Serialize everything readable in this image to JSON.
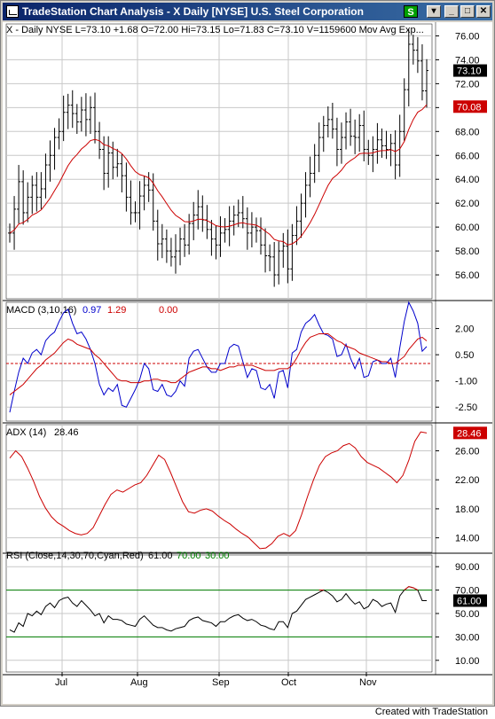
{
  "window": {
    "title": "TradeStation Chart Analysis - X  Daily  [NYSE] U.S. Steel Corporation",
    "s_badge": "S",
    "dropdown_glyph": "▾",
    "minimize_glyph": "_",
    "maximize_glyph": "□",
    "close_glyph": "✕"
  },
  "footer": {
    "credit": "Created with TradeStation"
  },
  "chart_data": [
    {
      "type": "line",
      "panel": "price",
      "style": "ohlc-bars",
      "header": "X - Daily    NYSE  L=73.10  +1.68  O=72.00  Hi=73.15  Lo=71.83  C=73.10  V=1159600  Mov Avg Exp...",
      "y_ticks": [
        "76.00",
        "74.00",
        "72.00",
        "70.00",
        "68.00",
        "66.00",
        "64.00",
        "62.00",
        "60.00",
        "58.00",
        "56.00"
      ],
      "ylim": [
        54,
        77
      ],
      "markers": [
        {
          "label": "73.10",
          "value": 73.1,
          "color": "#000000"
        },
        {
          "label": "70.08",
          "value": 70.08,
          "color": "#cc0000"
        }
      ],
      "series": [
        {
          "color": "#000000",
          "values": [
            59.5,
            61.5,
            63.8,
            61.2,
            62.5,
            63.5,
            62.5,
            63.2,
            65.2,
            66.0,
            67.5,
            68.0,
            69.6,
            70.2,
            69.5,
            68.8,
            69.8,
            69.0,
            70.0,
            68.0,
            66.5,
            64.5,
            66.2,
            65.0,
            65.3,
            64.3,
            62.5,
            61.2,
            61.2,
            62.6,
            63.5,
            63.1,
            60.5,
            58.6,
            59.0,
            58.0,
            57.5,
            58.0,
            59.0,
            58.5,
            60.3,
            61.0,
            61.7,
            60.6,
            59.8,
            59.0,
            58.5,
            59.5,
            59.8,
            60.5,
            61.0,
            61.2,
            60.7,
            59.5,
            60.0,
            59.7,
            58.5,
            57.6,
            57.5,
            56.0,
            58.0,
            58.4,
            56.5,
            59.3,
            60.5,
            62.0,
            63.5,
            64.5,
            66.0,
            67.5,
            68.5,
            69.0,
            68.2,
            66.5,
            67.5,
            68.8,
            67.6,
            67.5,
            68.5,
            66.5,
            66.0,
            66.5,
            67.3,
            66.8,
            66.5,
            67.0,
            65.2,
            68.0,
            71.5,
            75.3,
            74.8,
            73.9,
            71.4,
            73.1
          ]
        }
      ]
    },
    {
      "type": "line",
      "panel": "indicator",
      "header": "MACD  (3,10,16)",
      "readouts": [
        {
          "text": "0.97",
          "color": "#0000cc"
        },
        {
          "text": "1.29",
          "color": "#cc0000"
        },
        {
          "text": "0.00",
          "color": "#cc0000"
        }
      ],
      "y_ticks": [
        "2.00",
        "0.50",
        "-1.00",
        "-2.50"
      ],
      "ylim": [
        -3.3,
        3.5
      ],
      "series": [
        {
          "color": "#0000cc",
          "values": [
            -2.8,
            -1.6,
            -0.5,
            0.3,
            0.0,
            0.6,
            0.8,
            0.5,
            1.3,
            1.6,
            1.8,
            2.4,
            2.9,
            3.1,
            2.3,
            1.7,
            1.8,
            1.4,
            0.8,
            0.0,
            -1.2,
            -1.8,
            -1.4,
            -1.6,
            -1.2,
            -2.4,
            -2.5,
            -2.0,
            -1.5,
            -0.9,
            0.0,
            -0.3,
            -1.5,
            -1.6,
            -1.2,
            -1.8,
            -1.9,
            -1.6,
            -1.0,
            -1.3,
            0.3,
            0.7,
            0.8,
            0.3,
            -0.2,
            -0.5,
            -0.5,
            0.0,
            0.0,
            0.9,
            1.1,
            1.0,
            0.1,
            -0.8,
            -0.3,
            -0.4,
            -1.4,
            -1.5,
            -1.2,
            -2.0,
            -0.5,
            -0.4,
            -1.4,
            0.6,
            0.8,
            1.8,
            2.3,
            2.5,
            2.8,
            2.2,
            1.7,
            1.6,
            1.4,
            0.4,
            0.5,
            1.1,
            0.3,
            -0.3,
            0.3,
            -0.8,
            -0.7,
            0.1,
            0.2,
            0.0,
            0.0,
            0.3,
            -0.8,
            0.9,
            2.4,
            3.5,
            3.0,
            2.3,
            0.7,
            0.97
          ]
        },
        {
          "color": "#cc0000",
          "values": [
            -1.8,
            -1.6,
            -1.4,
            -1.2,
            -0.9,
            -0.6,
            -0.3,
            -0.1,
            0.2,
            0.4,
            0.6,
            0.9,
            1.2,
            1.4,
            1.3,
            1.1,
            1.0,
            0.9,
            0.8,
            0.5,
            0.3,
            0.0,
            -0.3,
            -0.6,
            -0.9,
            -1.0,
            -1.0,
            -1.1,
            -1.1,
            -1.1,
            -1.0,
            -1.0,
            -0.9,
            -0.9,
            -1.0,
            -1.0,
            -1.1,
            -1.1,
            -0.9,
            -0.7,
            -0.5,
            -0.4,
            -0.3,
            -0.2,
            -0.2,
            -0.3,
            -0.3,
            -0.4,
            -0.3,
            -0.2,
            -0.2,
            -0.1,
            -0.1,
            -0.1,
            -0.1,
            -0.2,
            -0.3,
            -0.4,
            -0.4,
            -0.4,
            -0.3,
            -0.3,
            -0.3,
            -0.1,
            0.3,
            0.8,
            1.2,
            1.5,
            1.6,
            1.7,
            1.7,
            1.7,
            1.5,
            1.3,
            1.2,
            1.0,
            0.9,
            0.8,
            0.6,
            0.5,
            0.4,
            0.3,
            0.2,
            0.1,
            0.1,
            0.0,
            0.0,
            0.2,
            0.4,
            0.8,
            1.1,
            1.4,
            1.5,
            1.29
          ]
        }
      ],
      "reference_lines": [
        {
          "value": 0.0,
          "color": "#cc0000",
          "dashed": true
        }
      ]
    },
    {
      "type": "line",
      "panel": "indicator",
      "header": "ADX  (14)",
      "readouts": [
        {
          "text": "28.46",
          "color": "#000000"
        }
      ],
      "y_ticks": [
        "26.00",
        "22.00",
        "18.00",
        "14.00"
      ],
      "ylim": [
        12,
        29.6
      ],
      "markers": [
        {
          "label": "28.46",
          "value": 28.46,
          "color": "#cc0000"
        }
      ],
      "series": [
        {
          "color": "#cc0000",
          "values": [
            25.0,
            26.0,
            25.2,
            23.6,
            21.8,
            19.7,
            18.1,
            16.9,
            16.1,
            15.6,
            15.0,
            14.6,
            14.4,
            14.6,
            15.4,
            17.0,
            18.6,
            20.0,
            20.6,
            20.3,
            20.8,
            21.3,
            21.6,
            22.6,
            24.0,
            25.4,
            24.8,
            23.0,
            21.0,
            19.0,
            17.6,
            17.4,
            17.8,
            18.0,
            17.7,
            17.0,
            16.4,
            15.9,
            15.2,
            14.6,
            14.1,
            13.3,
            12.5,
            12.6,
            13.2,
            14.2,
            14.6,
            14.2,
            15.0,
            17.2,
            19.7,
            22.0,
            24.0,
            25.2,
            25.7,
            26.0,
            26.7,
            27.0,
            26.4,
            25.2,
            24.4,
            24.0,
            23.6,
            23.0,
            22.4,
            21.6,
            22.6,
            24.7,
            27.3,
            28.6,
            28.46
          ]
        }
      ]
    },
    {
      "type": "line",
      "panel": "indicator",
      "header": "RSI  (Close,14,30,70,Cyan,Red)",
      "readouts": [
        {
          "text": "61.00",
          "color": "#000000"
        },
        {
          "text": "70.00",
          "color": "#008000"
        },
        {
          "text": "30.00",
          "color": "#008000"
        }
      ],
      "y_ticks": [
        "90.00",
        "70.00",
        "50.00",
        "30.00",
        "10.00"
      ],
      "ylim": [
        0,
        100
      ],
      "markers": [
        {
          "label": "61.00",
          "value": 61.0,
          "color": "#000000"
        }
      ],
      "series": [
        {
          "color": "#000000",
          "values": [
            36,
            34,
            42,
            39,
            50,
            48,
            52,
            49,
            56,
            59,
            55,
            61,
            63,
            64,
            59,
            56,
            61,
            57,
            53,
            48,
            50,
            42,
            48,
            45,
            45,
            44,
            41,
            40,
            39,
            45,
            48,
            44,
            40,
            38,
            38,
            36,
            35,
            37,
            38,
            39,
            44,
            46,
            47,
            44,
            43,
            42,
            39,
            43,
            43,
            46,
            48,
            49,
            46,
            44,
            45,
            43,
            40,
            39,
            37,
            36,
            43,
            43,
            38,
            50,
            52,
            57,
            62,
            64,
            66,
            68,
            70,
            68,
            65,
            60,
            62,
            67,
            62,
            58,
            60,
            54,
            56,
            62,
            60,
            56,
            58,
            59,
            51,
            65,
            70,
            73,
            72,
            70,
            61,
            61
          ]
        },
        {
          "color": "#cc0000",
          "values": [
            null,
            null,
            null,
            null,
            null,
            null,
            null,
            null,
            null,
            null,
            null,
            null,
            null,
            null,
            null,
            null,
            null,
            null,
            null,
            null,
            null,
            null,
            null,
            null,
            null,
            null,
            null,
            null,
            null,
            null,
            null,
            null,
            null,
            null,
            null,
            null,
            null,
            null,
            null,
            null,
            null,
            null,
            null,
            null,
            null,
            null,
            null,
            null,
            null,
            null,
            null,
            null,
            null,
            null,
            null,
            null,
            null,
            null,
            null,
            null,
            null,
            null,
            null,
            null,
            null,
            null,
            null,
            null,
            null,
            70,
            70,
            null,
            null,
            null,
            null,
            null,
            null,
            null,
            null,
            null,
            null,
            null,
            null,
            null,
            null,
            null,
            null,
            null,
            70,
            73,
            72,
            70,
            null,
            null
          ]
        }
      ],
      "reference_lines": [
        {
          "value": 70,
          "color": "#008000"
        },
        {
          "value": 30,
          "color": "#008000"
        }
      ]
    }
  ],
  "x_axis": {
    "labels": [
      "Jul",
      "Aug",
      "Sep",
      "Oct",
      "Nov"
    ]
  }
}
